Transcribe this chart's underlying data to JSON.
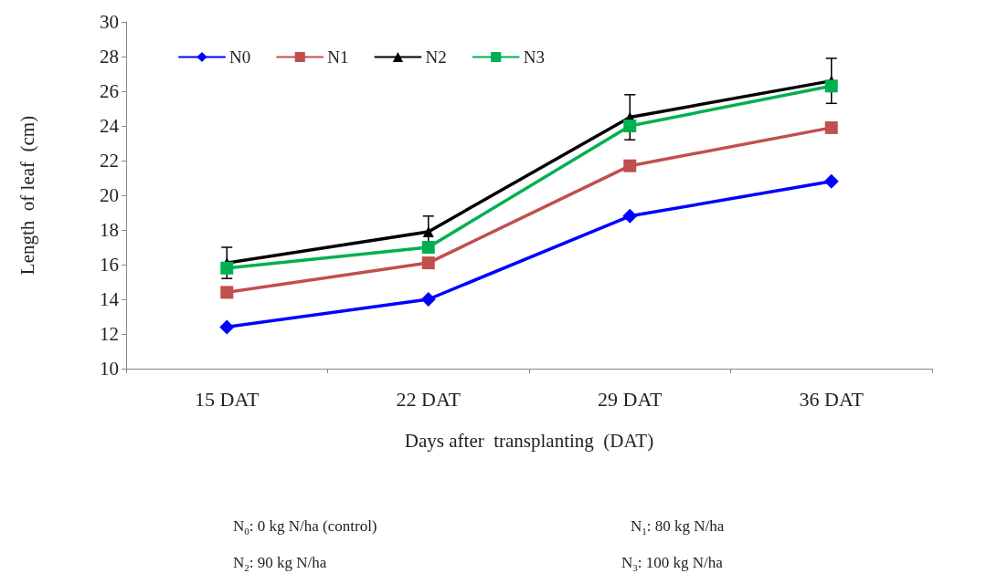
{
  "chart_data": {
    "type": "line",
    "xlabel": "Days after  transplanting  (DAT)",
    "ylabel": "Length  of leaf  (cm)",
    "categories": [
      "15 DAT",
      "22 DAT",
      "29 DAT",
      "36 DAT"
    ],
    "series": [
      {
        "name": "N0",
        "color": "#0000ff",
        "marker": "diamond",
        "values": [
          12.4,
          14.0,
          18.8,
          20.8
        ]
      },
      {
        "name": "N1",
        "color": "#c0504d",
        "marker": "square",
        "values": [
          14.4,
          16.1,
          21.7,
          23.9
        ]
      },
      {
        "name": "N2",
        "color": "#000000",
        "marker": "triangle",
        "values": [
          16.1,
          17.9,
          24.5,
          26.6
        ],
        "errors": [
          0.9,
          0.9,
          1.3,
          1.3
        ]
      },
      {
        "name": "N3",
        "color": "#00b050",
        "marker": "square",
        "values": [
          15.8,
          17.0,
          24.0,
          26.3
        ]
      }
    ],
    "ylim": [
      10,
      30
    ],
    "yticks": [
      10,
      12,
      14,
      16,
      18,
      20,
      22,
      24,
      26,
      28,
      30
    ],
    "grid": false,
    "legend": "top left",
    "line_style": "solid",
    "annotations": [
      "N$_{0}$: 0 kg N/ha (control)",
      "N$_{1}$: 80  kg N/ha",
      "N$_{2}$: 90  kg N/ha",
      "N$_{3}$: 100  kg N/ha"
    ]
  }
}
